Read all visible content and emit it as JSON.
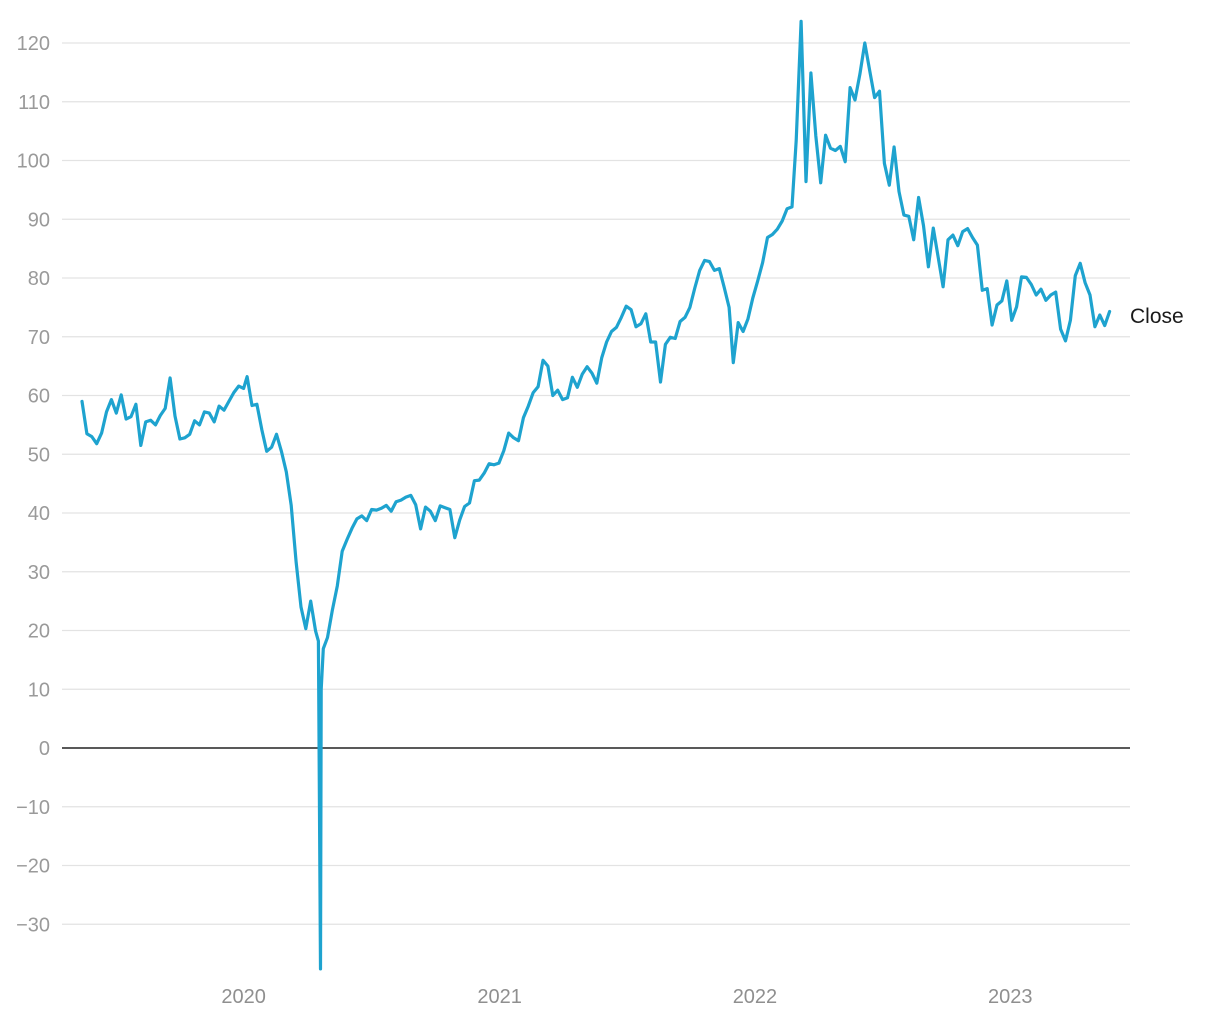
{
  "chart_data": {
    "type": "line",
    "title": "",
    "xlabel": "",
    "ylabel": "",
    "x_range": [
      "2019-05-15",
      "2023-05-25"
    ],
    "ylim": [
      -38,
      124
    ],
    "y_ticks": [
      -30,
      -20,
      -10,
      0,
      10,
      20,
      30,
      40,
      50,
      60,
      70,
      80,
      90,
      100,
      110,
      120
    ],
    "y_tick_labels": [
      "−30",
      "−20",
      "−10",
      "0",
      "10",
      "20",
      "30",
      "40",
      "50",
      "60",
      "70",
      "80",
      "90",
      "100",
      "110",
      "120"
    ],
    "x_ticks": [
      "2020-01-01",
      "2021-01-01",
      "2022-01-01",
      "2023-01-01"
    ],
    "x_tick_labels": [
      "2020",
      "2021",
      "2022",
      "2023"
    ],
    "grid": "horizontal",
    "zero_line": true,
    "legend": "inline-right",
    "series": [
      {
        "name": "Close",
        "color": "#1ea3cf",
        "points": [
          [
            "2019-05-15",
            59.0
          ],
          [
            "2019-05-22",
            53.5
          ],
          [
            "2019-05-29",
            53.0
          ],
          [
            "2019-06-05",
            51.8
          ],
          [
            "2019-06-12",
            53.6
          ],
          [
            "2019-06-19",
            57.2
          ],
          [
            "2019-06-26",
            59.3
          ],
          [
            "2019-07-03",
            57.0
          ],
          [
            "2019-07-10",
            60.1
          ],
          [
            "2019-07-17",
            56.0
          ],
          [
            "2019-07-24",
            56.4
          ],
          [
            "2019-07-31",
            58.5
          ],
          [
            "2019-08-07",
            51.5
          ],
          [
            "2019-08-14",
            55.5
          ],
          [
            "2019-08-21",
            55.8
          ],
          [
            "2019-08-28",
            55.0
          ],
          [
            "2019-09-04",
            56.6
          ],
          [
            "2019-09-11",
            57.8
          ],
          [
            "2019-09-18",
            63.0
          ],
          [
            "2019-09-25",
            56.5
          ],
          [
            "2019-10-02",
            52.6
          ],
          [
            "2019-10-09",
            52.8
          ],
          [
            "2019-10-16",
            53.4
          ],
          [
            "2019-10-23",
            55.7
          ],
          [
            "2019-10-30",
            55.0
          ],
          [
            "2019-11-06",
            57.2
          ],
          [
            "2019-11-13",
            57.0
          ],
          [
            "2019-11-20",
            55.5
          ],
          [
            "2019-11-27",
            58.2
          ],
          [
            "2019-12-04",
            57.5
          ],
          [
            "2019-12-11",
            59.0
          ],
          [
            "2019-12-18",
            60.5
          ],
          [
            "2019-12-25",
            61.6
          ],
          [
            "2020-01-01",
            61.2
          ],
          [
            "2020-01-06",
            63.2
          ],
          [
            "2020-01-13",
            58.3
          ],
          [
            "2020-01-20",
            58.5
          ],
          [
            "2020-01-27",
            54.2
          ],
          [
            "2020-02-03",
            50.5
          ],
          [
            "2020-02-10",
            51.2
          ],
          [
            "2020-02-17",
            53.4
          ],
          [
            "2020-02-24",
            50.5
          ],
          [
            "2020-03-02",
            47.0
          ],
          [
            "2020-03-09",
            41.3
          ],
          [
            "2020-03-16",
            31.7
          ],
          [
            "2020-03-23",
            24.0
          ],
          [
            "2020-03-30",
            20.3
          ],
          [
            "2020-04-06",
            25.0
          ],
          [
            "2020-04-13",
            19.9
          ],
          [
            "2020-04-17",
            18.2
          ],
          [
            "2020-04-20",
            -37.6
          ],
          [
            "2020-04-21",
            10.0
          ],
          [
            "2020-04-24",
            16.9
          ],
          [
            "2020-04-30",
            18.8
          ],
          [
            "2020-05-07",
            23.5
          ],
          [
            "2020-05-14",
            27.6
          ],
          [
            "2020-05-21",
            33.5
          ],
          [
            "2020-05-28",
            35.5
          ],
          [
            "2020-06-04",
            37.4
          ],
          [
            "2020-06-11",
            39.0
          ],
          [
            "2020-06-18",
            39.5
          ],
          [
            "2020-06-25",
            38.7
          ],
          [
            "2020-07-02",
            40.6
          ],
          [
            "2020-07-09",
            40.5
          ],
          [
            "2020-07-16",
            40.8
          ],
          [
            "2020-07-23",
            41.3
          ],
          [
            "2020-07-30",
            40.3
          ],
          [
            "2020-08-06",
            41.9
          ],
          [
            "2020-08-13",
            42.2
          ],
          [
            "2020-08-20",
            42.7
          ],
          [
            "2020-08-27",
            43.0
          ],
          [
            "2020-09-03",
            41.4
          ],
          [
            "2020-09-10",
            37.3
          ],
          [
            "2020-09-17",
            41.0
          ],
          [
            "2020-09-24",
            40.3
          ],
          [
            "2020-10-01",
            38.7
          ],
          [
            "2020-10-08",
            41.2
          ],
          [
            "2020-10-15",
            40.9
          ],
          [
            "2020-10-22",
            40.6
          ],
          [
            "2020-10-29",
            35.8
          ],
          [
            "2020-11-05",
            38.8
          ],
          [
            "2020-11-12",
            41.1
          ],
          [
            "2020-11-19",
            41.7
          ],
          [
            "2020-11-26",
            45.5
          ],
          [
            "2020-12-03",
            45.6
          ],
          [
            "2020-12-10",
            46.8
          ],
          [
            "2020-12-17",
            48.4
          ],
          [
            "2020-12-24",
            48.2
          ],
          [
            "2020-12-31",
            48.5
          ],
          [
            "2021-01-07",
            50.6
          ],
          [
            "2021-01-14",
            53.6
          ],
          [
            "2021-01-21",
            52.8
          ],
          [
            "2021-01-28",
            52.3
          ],
          [
            "2021-02-04",
            56.2
          ],
          [
            "2021-02-11",
            58.2
          ],
          [
            "2021-02-18",
            60.5
          ],
          [
            "2021-02-25",
            61.5
          ],
          [
            "2021-03-04",
            66.0
          ],
          [
            "2021-03-11",
            65.0
          ],
          [
            "2021-03-18",
            60.0
          ],
          [
            "2021-03-25",
            60.9
          ],
          [
            "2021-04-01",
            59.3
          ],
          [
            "2021-04-08",
            59.6
          ],
          [
            "2021-04-15",
            63.1
          ],
          [
            "2021-04-22",
            61.4
          ],
          [
            "2021-04-29",
            63.6
          ],
          [
            "2021-05-06",
            64.9
          ],
          [
            "2021-05-13",
            63.8
          ],
          [
            "2021-05-20",
            62.1
          ],
          [
            "2021-05-27",
            66.4
          ],
          [
            "2021-06-03",
            69.1
          ],
          [
            "2021-06-10",
            70.9
          ],
          [
            "2021-06-17",
            71.6
          ],
          [
            "2021-06-24",
            73.3
          ],
          [
            "2021-07-01",
            75.2
          ],
          [
            "2021-07-08",
            74.6
          ],
          [
            "2021-07-15",
            71.7
          ],
          [
            "2021-07-22",
            72.2
          ],
          [
            "2021-07-29",
            73.9
          ],
          [
            "2021-08-05",
            69.1
          ],
          [
            "2021-08-12",
            69.1
          ],
          [
            "2021-08-19",
            62.3
          ],
          [
            "2021-08-26",
            68.7
          ],
          [
            "2021-09-02",
            69.9
          ],
          [
            "2021-09-09",
            69.7
          ],
          [
            "2021-09-16",
            72.6
          ],
          [
            "2021-09-23",
            73.3
          ],
          [
            "2021-09-30",
            75.0
          ],
          [
            "2021-10-07",
            78.3
          ],
          [
            "2021-10-14",
            81.3
          ],
          [
            "2021-10-21",
            83.0
          ],
          [
            "2021-10-28",
            82.8
          ],
          [
            "2021-11-04",
            81.3
          ],
          [
            "2021-11-11",
            81.6
          ],
          [
            "2021-11-18",
            78.4
          ],
          [
            "2021-11-25",
            75.0
          ],
          [
            "2021-12-01",
            65.6
          ],
          [
            "2021-12-08",
            72.4
          ],
          [
            "2021-12-15",
            70.9
          ],
          [
            "2021-12-22",
            73.0
          ],
          [
            "2021-12-29",
            76.6
          ],
          [
            "2022-01-05",
            79.5
          ],
          [
            "2022-01-12",
            82.6
          ],
          [
            "2022-01-19",
            86.9
          ],
          [
            "2022-01-26",
            87.4
          ],
          [
            "2022-02-02",
            88.3
          ],
          [
            "2022-02-09",
            89.7
          ],
          [
            "2022-02-16",
            91.8
          ],
          [
            "2022-02-23",
            92.1
          ],
          [
            "2022-03-01",
            103.4
          ],
          [
            "2022-03-08",
            123.7
          ],
          [
            "2022-03-15",
            96.4
          ],
          [
            "2022-03-22",
            114.9
          ],
          [
            "2022-03-29",
            104.2
          ],
          [
            "2022-04-05",
            96.2
          ],
          [
            "2022-04-12",
            104.3
          ],
          [
            "2022-04-19",
            102.1
          ],
          [
            "2022-04-26",
            101.7
          ],
          [
            "2022-05-03",
            102.4
          ],
          [
            "2022-05-10",
            99.8
          ],
          [
            "2022-05-17",
            112.4
          ],
          [
            "2022-05-24",
            110.3
          ],
          [
            "2022-05-31",
            114.7
          ],
          [
            "2022-06-07",
            120.0
          ],
          [
            "2022-06-14",
            115.3
          ],
          [
            "2022-06-21",
            110.7
          ],
          [
            "2022-06-28",
            111.8
          ],
          [
            "2022-07-05",
            99.5
          ],
          [
            "2022-07-12",
            95.8
          ],
          [
            "2022-07-19",
            102.3
          ],
          [
            "2022-07-26",
            94.7
          ],
          [
            "2022-08-02",
            90.7
          ],
          [
            "2022-08-09",
            90.5
          ],
          [
            "2022-08-16",
            86.5
          ],
          [
            "2022-08-23",
            93.7
          ],
          [
            "2022-08-30",
            88.9
          ],
          [
            "2022-09-06",
            81.9
          ],
          [
            "2022-09-13",
            88.5
          ],
          [
            "2022-09-20",
            83.5
          ],
          [
            "2022-09-27",
            78.5
          ],
          [
            "2022-10-04",
            86.5
          ],
          [
            "2022-10-11",
            87.3
          ],
          [
            "2022-10-18",
            85.5
          ],
          [
            "2022-10-25",
            87.9
          ],
          [
            "2022-11-01",
            88.4
          ],
          [
            "2022-11-08",
            86.9
          ],
          [
            "2022-11-15",
            85.6
          ],
          [
            "2022-11-22",
            77.9
          ],
          [
            "2022-11-29",
            78.2
          ],
          [
            "2022-12-06",
            72.0
          ],
          [
            "2022-12-13",
            75.4
          ],
          [
            "2022-12-20",
            76.1
          ],
          [
            "2022-12-27",
            79.5
          ],
          [
            "2023-01-03",
            72.8
          ],
          [
            "2023-01-10",
            75.1
          ],
          [
            "2023-01-17",
            80.2
          ],
          [
            "2023-01-24",
            80.1
          ],
          [
            "2023-01-31",
            78.9
          ],
          [
            "2023-02-07",
            77.1
          ],
          [
            "2023-02-14",
            78.1
          ],
          [
            "2023-02-21",
            76.2
          ],
          [
            "2023-02-28",
            77.1
          ],
          [
            "2023-03-07",
            77.6
          ],
          [
            "2023-03-14",
            71.3
          ],
          [
            "2023-03-21",
            69.3
          ],
          [
            "2023-03-28",
            72.8
          ],
          [
            "2023-04-04",
            80.4
          ],
          [
            "2023-04-11",
            82.5
          ],
          [
            "2023-04-18",
            79.2
          ],
          [
            "2023-04-25",
            77.1
          ],
          [
            "2023-05-02",
            71.7
          ],
          [
            "2023-05-09",
            73.7
          ],
          [
            "2023-05-16",
            71.9
          ],
          [
            "2023-05-23",
            74.3
          ]
        ]
      }
    ]
  }
}
